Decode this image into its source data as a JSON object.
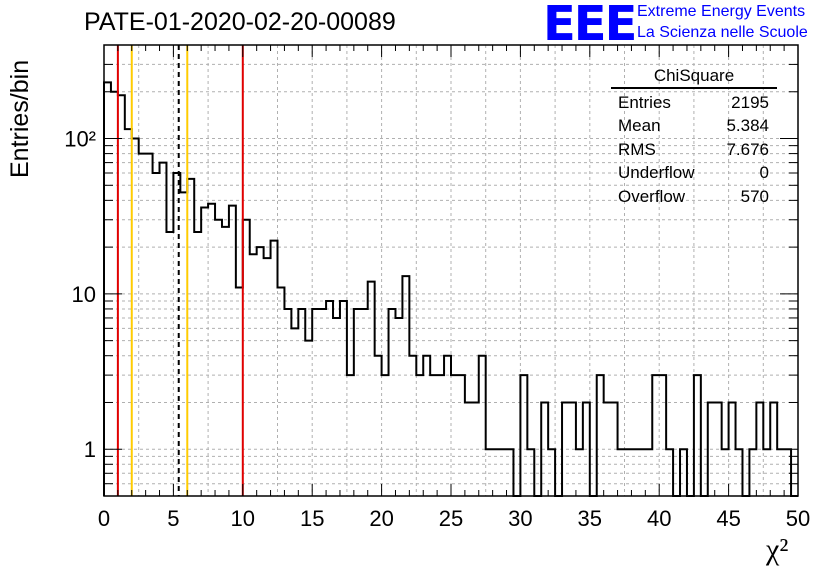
{
  "title": "PATE-01-2020-02-20-00089",
  "branding": {
    "logo": "EEE",
    "line1": "Extreme Energy Events",
    "line2": "La Scienza nelle Scuole"
  },
  "stats_box": {
    "title": "ChiSquare",
    "rows": [
      {
        "label": "Entries",
        "value": "2195"
      },
      {
        "label": "Mean",
        "value": "5.384"
      },
      {
        "label": "RMS",
        "value": "7.676"
      },
      {
        "label": "Underflow",
        "value": "0"
      },
      {
        "label": "Overflow",
        "value": "570"
      }
    ]
  },
  "colors": {
    "histogram": "#000000",
    "red_line": "#e00000",
    "yellow_line": "#ffcc00",
    "grid": "#b0b0b0"
  },
  "chart_data": {
    "type": "histogram",
    "title": "PATE-01-2020-02-20-00089",
    "xlabel": "χ²",
    "ylabel": "Entries/bin",
    "xlim": [
      0,
      50
    ],
    "ylim": [
      0.5,
      400
    ],
    "y_scale": "log",
    "grid": true,
    "bin_width": 0.5,
    "x_ticks": [
      "0",
      "5",
      "10",
      "15",
      "20",
      "25",
      "30",
      "35",
      "40",
      "45",
      "50"
    ],
    "y_ticks": [
      {
        "value": 1,
        "label": "1"
      },
      {
        "value": 10,
        "label": "10"
      },
      {
        "value": 100,
        "label": "10²"
      }
    ],
    "counts": [
      230,
      200,
      190,
      115,
      100,
      80,
      80,
      60,
      70,
      25,
      60,
      45,
      55,
      25,
      36,
      38,
      30,
      27,
      37,
      11,
      30,
      18,
      20,
      17,
      22,
      11,
      8,
      6,
      8,
      5,
      8,
      8,
      9,
      7,
      9,
      3,
      8,
      8,
      12,
      4,
      3,
      8,
      7,
      13,
      4,
      3,
      4,
      3,
      3,
      4,
      3,
      3,
      2,
      2,
      4,
      1,
      1,
      1,
      1,
      0,
      3,
      1,
      0,
      2,
      1,
      0,
      2,
      2,
      1,
      2,
      0,
      3,
      2,
      2,
      1,
      1,
      1,
      1,
      1,
      3,
      3,
      1,
      0,
      1,
      0,
      3,
      0,
      2,
      2,
      1,
      2,
      1,
      0,
      1,
      2,
      1,
      2,
      1,
      1,
      0
    ],
    "vertical_lines": [
      {
        "x": 1,
        "color": "red",
        "style": "solid"
      },
      {
        "x": 2,
        "color": "yellow",
        "style": "solid"
      },
      {
        "x": 5.384,
        "color": "black",
        "style": "dashed"
      },
      {
        "x": 6,
        "color": "yellow",
        "style": "solid"
      },
      {
        "x": 10,
        "color": "red",
        "style": "solid"
      }
    ]
  }
}
